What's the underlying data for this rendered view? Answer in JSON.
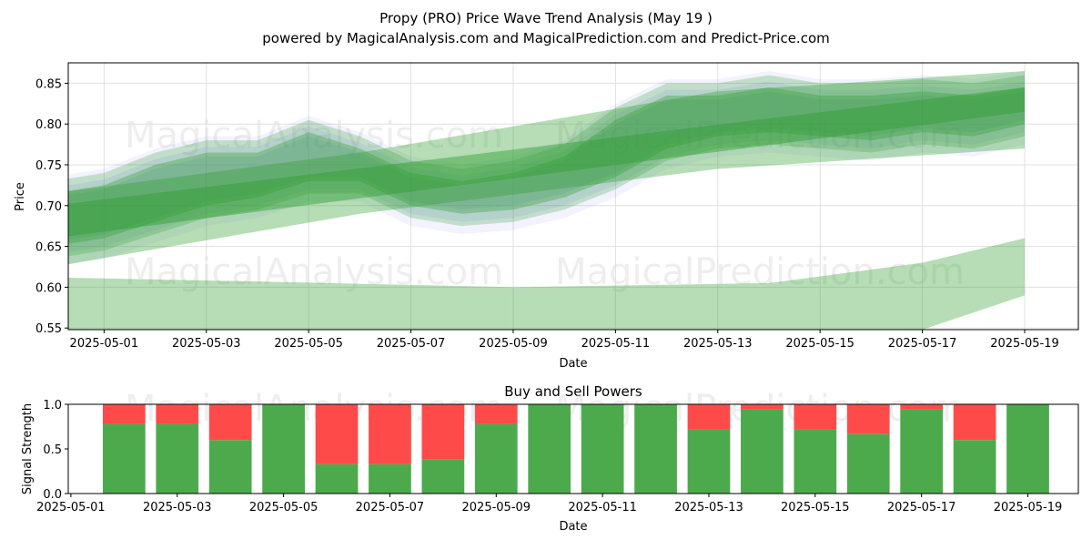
{
  "header": {
    "title": "Propy (PRO) Price Wave Trend Analysis (May 19 )",
    "subtitle": "powered by MagicalAnalysis.com and MagicalPrediction.com and Predict-Price.com"
  },
  "watermarks": [
    "MagicalAnalysis.com",
    "MagicalPrediction.com"
  ],
  "colors": {
    "price_band": "#2e9e2e",
    "wave_band": "#6a6aff",
    "buy": "#4caa4c",
    "sell": "#ff4a4a"
  },
  "chart_data": [
    {
      "type": "area",
      "title": "",
      "xlabel": "Date",
      "ylabel": "Price",
      "xlim": [
        "2025-04-30",
        "2025-05-20"
      ],
      "ylim": [
        0.548,
        0.875
      ],
      "x_ticks": [
        "2025-05-01",
        "2025-05-03",
        "2025-05-05",
        "2025-05-07",
        "2025-05-09",
        "2025-05-11",
        "2025-05-13",
        "2025-05-15",
        "2025-05-17",
        "2025-05-19"
      ],
      "y_ticks": [
        "0.55",
        "0.60",
        "0.65",
        "0.70",
        "0.75",
        "0.80",
        "0.85"
      ],
      "grid": true,
      "series": [
        {
          "x": [
            "2025-04-30",
            "2025-05-01",
            "2025-05-02",
            "2025-05-03",
            "2025-05-04",
            "2025-05-05",
            "2025-05-06",
            "2025-05-07",
            "2025-05-08",
            "2025-05-09",
            "2025-05-10",
            "2025-05-11",
            "2025-05-12",
            "2025-05-13",
            "2025-05-14",
            "2025-05-15",
            "2025-05-16",
            "2025-05-17",
            "2025-05-18",
            "2025-05-19"
          ],
          "low": [
            0.655,
            0.665,
            0.685,
            0.705,
            0.715,
            0.735,
            0.735,
            0.705,
            0.695,
            0.7,
            0.715,
            0.74,
            0.775,
            0.79,
            0.795,
            0.79,
            0.785,
            0.795,
            0.79,
            0.805
          ],
          "high": [
            0.71,
            0.72,
            0.745,
            0.76,
            0.76,
            0.785,
            0.765,
            0.735,
            0.725,
            0.735,
            0.755,
            0.8,
            0.83,
            0.83,
            0.84,
            0.83,
            0.83,
            0.835,
            0.83,
            0.84
          ]
        },
        {
          "x": [
            "2025-04-30",
            "2025-05-19"
          ],
          "low": [
            0.66,
            0.815
          ],
          "high": [
            0.7,
            0.845
          ]
        },
        {
          "x": [
            "2025-04-30",
            "2025-05-06",
            "2025-05-13",
            "2025-05-19"
          ],
          "low": [
            0.625,
            0.69,
            0.745,
            0.77
          ],
          "high": [
            0.715,
            0.765,
            0.84,
            0.865
          ]
        },
        {
          "x": [
            "2025-04-30",
            "2025-05-04",
            "2025-05-09",
            "2025-05-14",
            "2025-05-17",
            "2025-05-19"
          ],
          "low": [
            0.548,
            0.548,
            0.548,
            0.548,
            0.548,
            0.59
          ],
          "high": [
            0.612,
            0.607,
            0.6,
            0.605,
            0.63,
            0.66
          ]
        }
      ]
    },
    {
      "type": "bar",
      "title": "Buy and Sell Powers",
      "xlabel": "Date",
      "ylabel": "Signal Strength",
      "xlim": [
        "2025-04-30",
        "2025-05-20"
      ],
      "ylim": [
        0,
        1.0
      ],
      "x_ticks": [
        "2025-05-01",
        "2025-05-03",
        "2025-05-05",
        "2025-05-07",
        "2025-05-09",
        "2025-05-11",
        "2025-05-13",
        "2025-05-15",
        "2025-05-17",
        "2025-05-19"
      ],
      "y_ticks": [
        "0.0",
        "0.5",
        "1.0"
      ],
      "categories": [
        "2025-05-02",
        "2025-05-03",
        "2025-05-04",
        "2025-05-05",
        "2025-05-06",
        "2025-05-07",
        "2025-05-08",
        "2025-05-09",
        "2025-05-10",
        "2025-05-11",
        "2025-05-12",
        "2025-05-13",
        "2025-05-14",
        "2025-05-15",
        "2025-05-16",
        "2025-05-17",
        "2025-05-18",
        "2025-05-19"
      ],
      "buy": [
        0.78,
        0.78,
        0.6,
        1.0,
        0.33,
        0.33,
        0.38,
        0.78,
        1.0,
        1.0,
        1.0,
        0.72,
        0.94,
        0.72,
        0.67,
        0.94,
        0.6,
        1.0
      ],
      "sell": [
        0.22,
        0.22,
        0.4,
        0.0,
        0.67,
        0.67,
        0.62,
        0.22,
        0.0,
        0.0,
        0.0,
        0.28,
        0.06,
        0.28,
        0.33,
        0.06,
        0.4,
        0.0
      ]
    }
  ]
}
